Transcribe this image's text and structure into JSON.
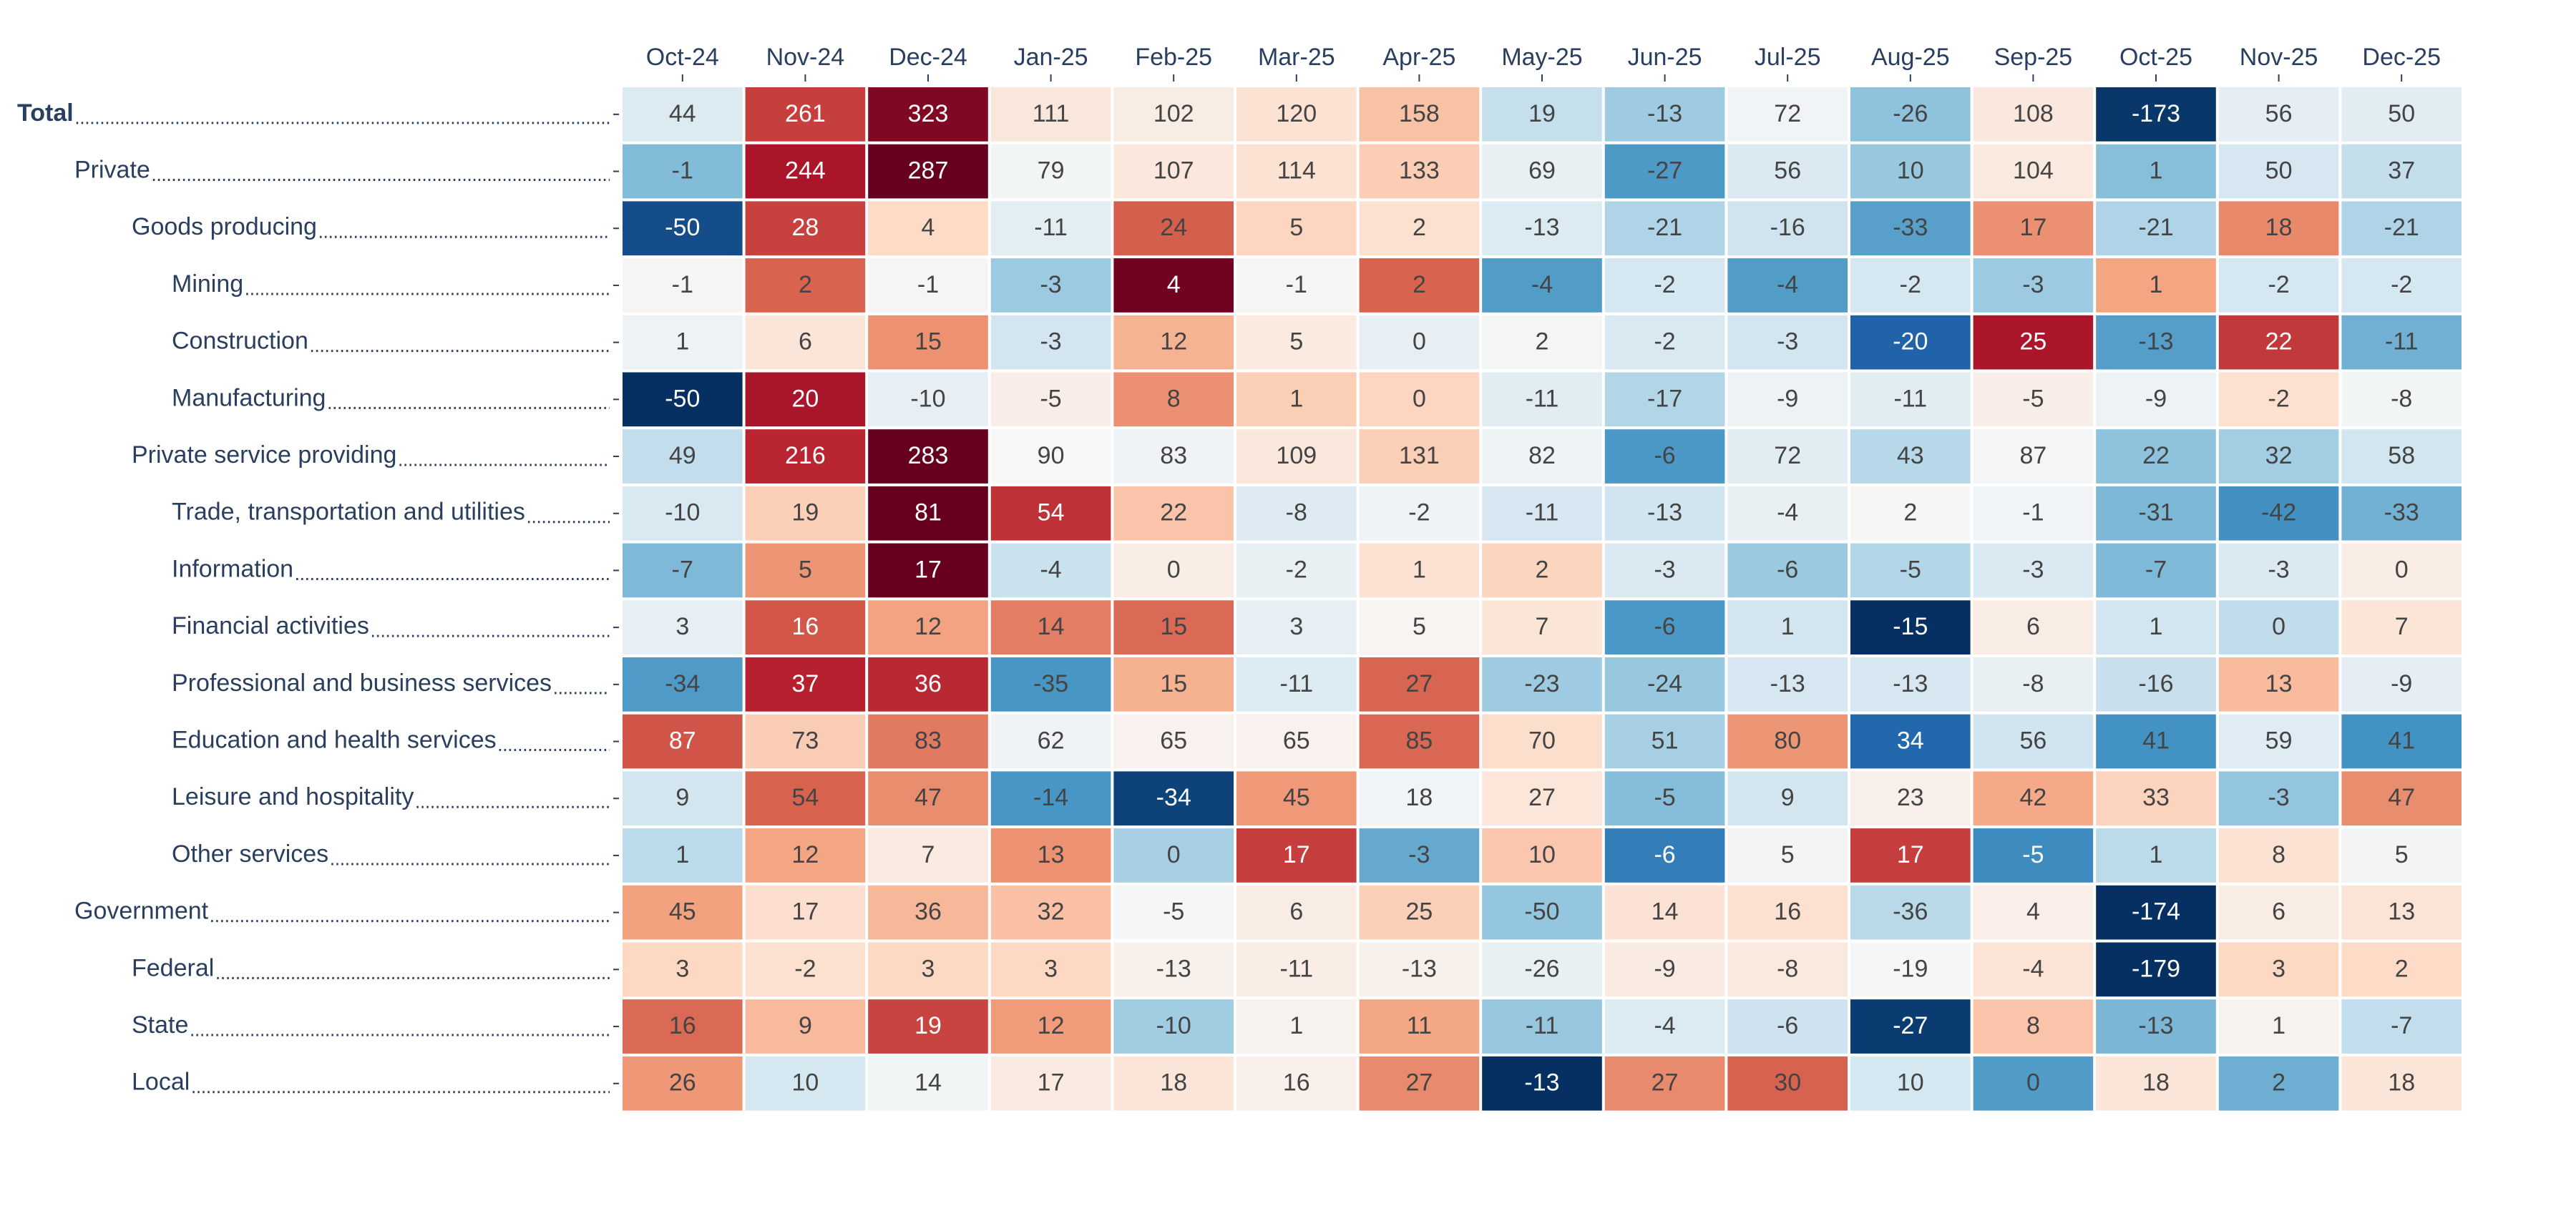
{
  "chart_data": {
    "type": "heatmap",
    "x": [
      "Oct-24",
      "Nov-24",
      "Dec-24",
      "Jan-25",
      "Feb-25",
      "Mar-25",
      "Apr-25",
      "May-25",
      "Jun-25",
      "Jul-25",
      "Aug-25",
      "Sep-25",
      "Oct-25",
      "Nov-25",
      "Dec-25"
    ],
    "y": [
      "Total",
      "Private",
      "Goods producing",
      "Mining",
      "Construction",
      "Manufacturing",
      "Private service providing",
      "Trade, transportation and utilities",
      "Information",
      "Financial activities",
      "Professional and business services",
      "Education and health services",
      "Leisure and hospitality",
      "Other services",
      "Government",
      "Federal",
      "State",
      "Local"
    ],
    "values": [
      [
        44,
        261,
        323,
        111,
        102,
        120,
        158,
        19,
        -13,
        72,
        -26,
        108,
        -173,
        56,
        50
      ],
      [
        -1,
        244,
        287,
        79,
        107,
        114,
        133,
        69,
        -27,
        56,
        10,
        104,
        1,
        50,
        37
      ],
      [
        -50,
        28,
        4,
        -11,
        24,
        5,
        2,
        -13,
        -21,
        -16,
        -33,
        17,
        -21,
        18,
        -21
      ],
      [
        -1,
        2,
        -1,
        -3,
        4,
        -1,
        2,
        -4,
        -2,
        -4,
        -2,
        -3,
        1,
        -2,
        -2
      ],
      [
        1,
        6,
        15,
        -3,
        12,
        5,
        0,
        2,
        -2,
        -3,
        -20,
        25,
        -13,
        22,
        -11
      ],
      [
        -50,
        20,
        -10,
        -5,
        8,
        1,
        0,
        -11,
        -17,
        -9,
        -11,
        -5,
        -9,
        -2,
        -8
      ],
      [
        49,
        216,
        283,
        90,
        83,
        109,
        131,
        82,
        -6,
        72,
        43,
        87,
        22,
        32,
        58
      ],
      [
        -10,
        19,
        81,
        54,
        22,
        -8,
        -2,
        -11,
        -13,
        -4,
        2,
        -1,
        -31,
        -42,
        -33
      ],
      [
        -7,
        5,
        17,
        -4,
        0,
        -2,
        1,
        2,
        -3,
        -6,
        -5,
        -3,
        -7,
        -3,
        0
      ],
      [
        3,
        16,
        12,
        14,
        15,
        3,
        5,
        7,
        -6,
        1,
        -15,
        6,
        1,
        0,
        7
      ],
      [
        -34,
        37,
        36,
        -35,
        15,
        -11,
        27,
        -23,
        -24,
        -13,
        -13,
        -8,
        -16,
        13,
        -9
      ],
      [
        87,
        73,
        83,
        62,
        65,
        65,
        85,
        70,
        51,
        80,
        34,
        56,
        41,
        59,
        41
      ],
      [
        9,
        54,
        47,
        -14,
        -34,
        45,
        18,
        27,
        -5,
        9,
        23,
        42,
        33,
        -3,
        47
      ],
      [
        1,
        12,
        7,
        13,
        0,
        17,
        -3,
        10,
        -6,
        5,
        17,
        -5,
        1,
        8,
        5
      ],
      [
        45,
        17,
        36,
        32,
        -5,
        6,
        25,
        -50,
        14,
        16,
        -36,
        4,
        -174,
        6,
        13
      ],
      [
        3,
        -2,
        3,
        3,
        -13,
        -11,
        -13,
        -26,
        -9,
        -8,
        -19,
        -4,
        -179,
        3,
        2
      ],
      [
        16,
        9,
        19,
        12,
        -10,
        1,
        11,
        -11,
        -4,
        -6,
        -27,
        8,
        -13,
        1,
        -7
      ],
      [
        26,
        10,
        14,
        17,
        18,
        16,
        27,
        -13,
        27,
        30,
        10,
        0,
        18,
        2,
        18
      ]
    ]
  }
}
